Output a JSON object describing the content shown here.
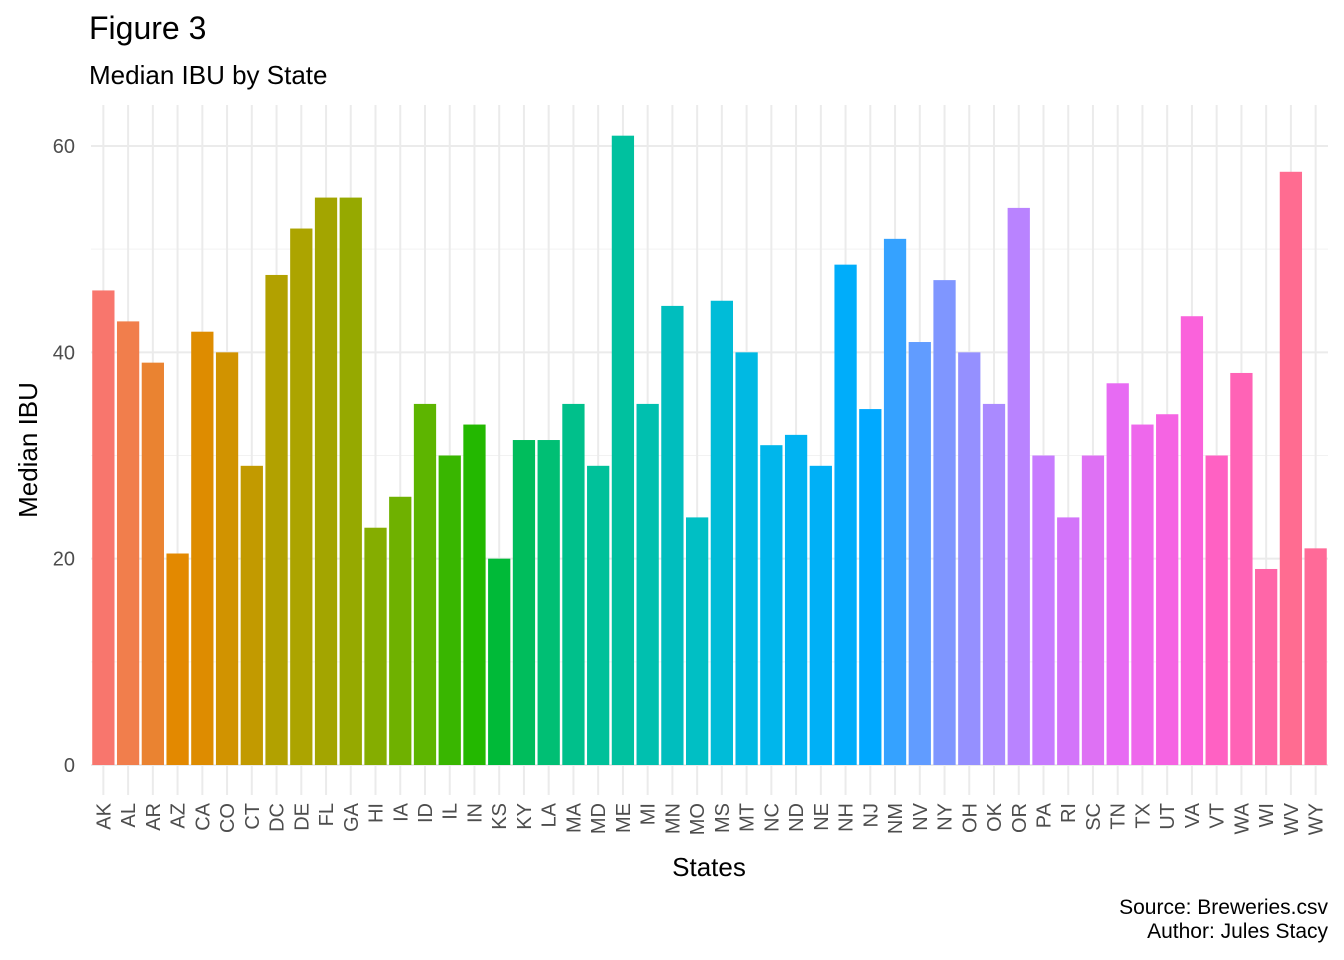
{
  "figure": {
    "title": "Figure 3",
    "subtitle": "Median IBU by State",
    "caption_source": "Source: Breweries.csv",
    "caption_author": "Author: Jules Stacy"
  },
  "chart_data": {
    "type": "bar",
    "xlabel": "States",
    "ylabel": "Median IBU",
    "ylim": [
      0,
      63
    ],
    "y_ticks": [
      0,
      20,
      40,
      60
    ],
    "grid": true,
    "legend": "none",
    "categories": [
      "AK",
      "AL",
      "AR",
      "AZ",
      "CA",
      "CO",
      "CT",
      "DC",
      "DE",
      "FL",
      "GA",
      "HI",
      "IA",
      "ID",
      "IL",
      "IN",
      "KS",
      "KY",
      "LA",
      "MA",
      "MD",
      "ME",
      "MI",
      "MN",
      "MO",
      "MS",
      "MT",
      "NC",
      "ND",
      "NE",
      "NH",
      "NJ",
      "NM",
      "NV",
      "NY",
      "OH",
      "OK",
      "OR",
      "PA",
      "RI",
      "SC",
      "TN",
      "TX",
      "UT",
      "VA",
      "VT",
      "WA",
      "WI",
      "WV",
      "WY"
    ],
    "values": [
      46,
      43,
      39,
      20.5,
      42,
      40,
      29,
      47.5,
      52,
      55,
      55,
      23,
      26,
      35,
      30,
      33,
      20,
      31.5,
      31.5,
      35,
      29,
      61,
      35,
      44.5,
      24,
      45,
      40,
      31,
      32,
      29,
      48.5,
      34.5,
      51,
      41,
      47,
      40,
      35,
      54,
      30,
      24,
      30,
      37,
      33,
      34,
      43.5,
      30,
      38,
      19,
      57.5,
      21
    ],
    "colors": [
      "#F8766D",
      "#F17E4C",
      "#EA8331",
      "#E38900",
      "#DE8C00",
      "#D19300",
      "#C29A00",
      "#B2A100",
      "#ACA400",
      "#A3A500",
      "#96A900",
      "#85AD00",
      "#6FB100",
      "#5DB500",
      "#39B600",
      "#23B800",
      "#00BA38",
      "#00BD5C",
      "#00BF74",
      "#00C08B",
      "#00C19A",
      "#00C19F",
      "#00C0AF",
      "#00BEBE",
      "#00BFC4",
      "#00BCD8",
      "#00B9E3",
      "#00B6EB",
      "#00B3F2",
      "#00B0F6",
      "#00ADFA",
      "#00A9FF",
      "#35A2FF",
      "#619CFF",
      "#7F96FF",
      "#9590FF",
      "#AA8AFF",
      "#B983FF",
      "#C77CFF",
      "#D374FA",
      "#DE71F4",
      "#E76BF3",
      "#EE68EC",
      "#F564E3",
      "#FA62DB",
      "#FF61C3",
      "#FF63B6",
      "#FF66A8",
      "#FF6C91",
      "#FF6A98"
    ]
  }
}
